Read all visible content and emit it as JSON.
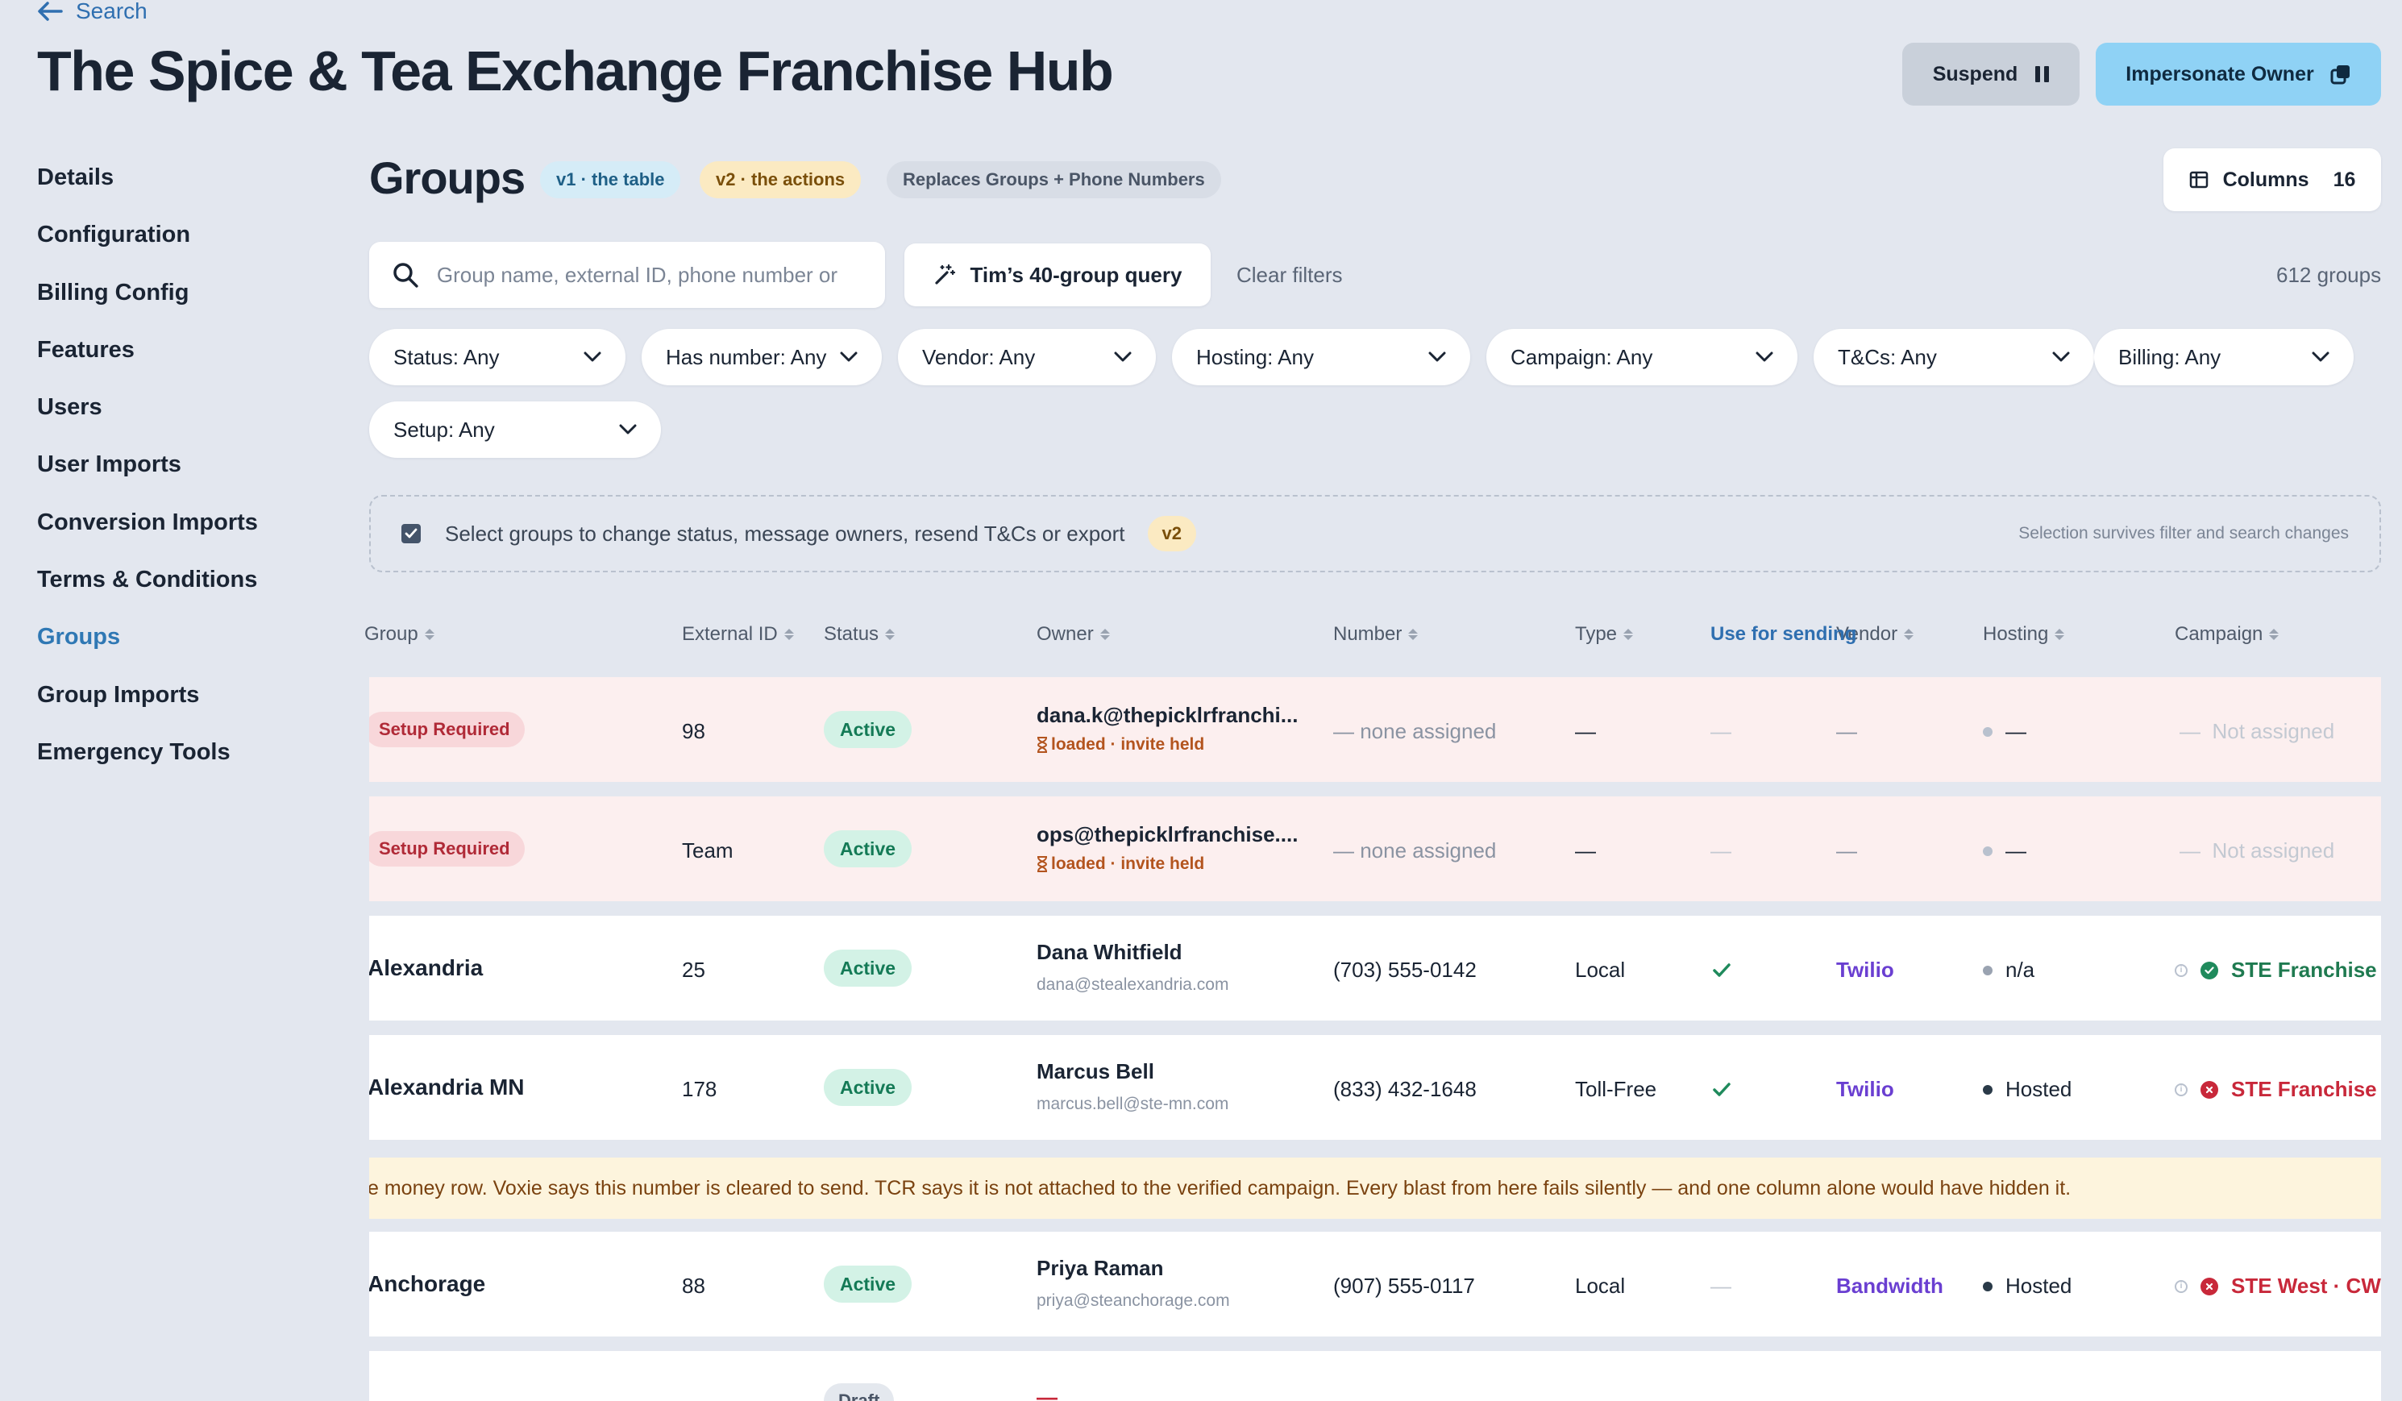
{
  "header": {
    "back_label": "Search",
    "title": "The Spice & Tea Exchange Franchise Hub",
    "suspend_label": "Suspend",
    "impersonate_label": "Impersonate Owner"
  },
  "sidebar": {
    "items": [
      {
        "label": "Details"
      },
      {
        "label": "Configuration"
      },
      {
        "label": "Billing Config"
      },
      {
        "label": "Features"
      },
      {
        "label": "Users"
      },
      {
        "label": "User Imports"
      },
      {
        "label": "Conversion Imports"
      },
      {
        "label": "Terms & Conditions"
      },
      {
        "label": "Groups",
        "active": true
      },
      {
        "label": "Group Imports"
      },
      {
        "label": "Emergency Tools"
      }
    ]
  },
  "main": {
    "title": "Groups",
    "pills": {
      "v1": "v1 · the table",
      "v2": "v2 · the actions",
      "replaces": "Replaces Groups + Phone Numbers"
    },
    "columns_label": "Columns",
    "columns_count": "16",
    "search_placeholder": "Group name, external ID, phone number or",
    "query_label": "Tim’s 40-group query",
    "clear_filters": "Clear filters",
    "group_count": "612 groups",
    "filters": [
      "Status: Any",
      "Has number: Any",
      "Vendor: Any",
      "Hosting: Any",
      "Campaign: Any",
      "T&Cs: Any",
      "Billing: Any",
      "Setup: Any"
    ],
    "selection": {
      "text": "Select groups to change status, message owners, resend T&Cs or export",
      "pill": "v2",
      "note": "Selection survives filter and search changes"
    }
  },
  "table": {
    "headers": {
      "group": "Group",
      "external_id": "External ID",
      "status": "Status",
      "owner": "Owner",
      "number": "Number",
      "type": "Type",
      "use_for_sending": "Use for sending",
      "vendor": "Vendor",
      "hosting": "Hosting",
      "campaign": "Campaign"
    },
    "rows": [
      {
        "group_badge": "Setup Required",
        "external_id": "98",
        "status": "Active",
        "owner_line1": "dana.k@thepicklrfranchi...",
        "owner_line2": "loaded · invite held",
        "number": "— none assigned",
        "type": "—",
        "use_for_sending": "—",
        "vendor": "—",
        "hosting": "—",
        "campaign": "Not assigned"
      },
      {
        "group_badge": "Setup Required",
        "external_id": "Team",
        "status": "Active",
        "owner_line1": "ops@thepicklrfranchise....",
        "owner_line2": "loaded · invite held",
        "number": "— none assigned",
        "type": "—",
        "use_for_sending": "—",
        "vendor": "—",
        "hosting": "—",
        "campaign": "Not assigned"
      },
      {
        "group_name": "Alexandria",
        "external_id": "25",
        "status": "Active",
        "owner_line1": "Dana Whitfield",
        "owner_line2": "dana@stealexandria.com",
        "number": "(703) 555-0142",
        "type": "Local",
        "vendor": "Twilio",
        "hosting": "n/a",
        "campaign": "STE Franchise"
      },
      {
        "group_name": "Alexandria MN",
        "external_id": "178",
        "status": "Active",
        "owner_line1": "Marcus Bell",
        "owner_line2": "marcus.bell@ste-mn.com",
        "number": "(833) 432-1648",
        "type": "Toll-Free",
        "vendor": "Twilio",
        "hosting": "Hosted",
        "campaign": "STE Franchise"
      },
      {
        "group_name": "Anchorage",
        "external_id": "88",
        "status": "Active",
        "owner_line1": "Priya Raman",
        "owner_line2": "priya@steanchorage.com",
        "number": "(907) 555-0117",
        "type": "Local",
        "use_for_sending": "—",
        "vendor": "Bandwidth",
        "hosting": "Hosted",
        "campaign": "STE West · CW"
      },
      {
        "status": "Draft",
        "owner_line1": "—"
      }
    ],
    "note": "e money row. Voxie says this number is cleared to send. TCR says it is not attached to the verified campaign. Every blast from here fails silently — and one column alone would have hidden it."
  },
  "colors": {
    "accent": "#2f78b4",
    "vendor": "#6a3fd1",
    "active_badge": "#d3f2e6",
    "setup_badge": "#f8d7da",
    "warn_row": "#fcefef",
    "note_row": "#fdf4dd"
  },
  "icons": [
    "arrow-left-icon",
    "pause-icon",
    "external-window-icon",
    "columns-icon",
    "search-icon",
    "magic-wand-icon",
    "chevron-down-icon",
    "check-icon",
    "hourglass-icon",
    "info-icon",
    "status-ok-icon",
    "status-error-icon"
  ]
}
